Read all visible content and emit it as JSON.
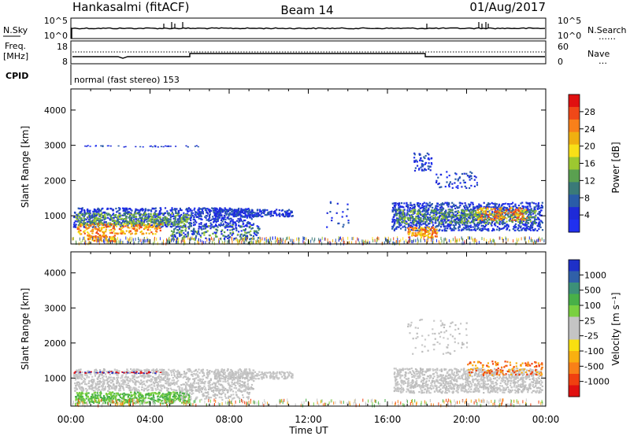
{
  "header": {
    "station": "Hankasalmi (fitACF)",
    "beam": "Beam 14",
    "date": "01/Aug/2017"
  },
  "panels": {
    "nsky": {
      "label": "N.Sky",
      "ticks_left": [
        "10^5",
        "10^0"
      ],
      "ticks_right": [
        "10^5",
        "10^0"
      ],
      "right_label": "N.Search",
      "right_marker": "……"
    },
    "freq": {
      "label_line1": "Freq.",
      "label_line2": "[MHz]",
      "ticks_left": [
        "18",
        "8"
      ],
      "ticks_right": [
        "60",
        "0"
      ],
      "right_label": "Nave",
      "right_marker": "…"
    },
    "cpid": {
      "label": "CPID",
      "mode": "normal (fast stereo) 153"
    }
  },
  "power_colorbar": {
    "label": "Power [dB]",
    "ticks": [
      "28",
      "24",
      "20",
      "16",
      "12",
      "8",
      "4"
    ],
    "colors": [
      "#e01010",
      "#f04818",
      "#f8801a",
      "#f0b010",
      "#f8e018",
      "#9cc830",
      "#5aa050",
      "#3a7a78",
      "#2a5ca8",
      "#1e2ad8",
      "#2030f0"
    ]
  },
  "velocity_colorbar": {
    "label": "Velocity [m s⁻¹]",
    "ticks": [
      "1000",
      "500",
      "100",
      "25",
      "-25",
      "-100",
      "-500",
      "-1000"
    ],
    "colors": [
      "#1e30c8",
      "#3060a8",
      "#3c9078",
      "#48b048",
      "#7ad040",
      "#c4c4c4",
      "#c4c4c4",
      "#f8e010",
      "#f8b010",
      "#f88018",
      "#f04010",
      "#e01010"
    ]
  },
  "chart_data": [
    {
      "type": "heatmap",
      "name": "power",
      "ylabel": "Slant Range [km]",
      "xlabel": "Time UT",
      "xlim_hours": [
        0,
        24
      ],
      "ylim": [
        200,
        4600
      ],
      "x_ticks": [
        "00:00",
        "04:00",
        "08:00",
        "12:00",
        "16:00",
        "20:00",
        "00:00"
      ],
      "y_ticks": [
        1000,
        2000,
        3000,
        4000
      ]
    },
    {
      "type": "heatmap",
      "name": "velocity",
      "ylabel": "Slant Range [km]",
      "xlabel": "Time UT",
      "xlim_hours": [
        0,
        24
      ],
      "ylim": [
        200,
        4600
      ],
      "x_ticks": [
        "00:00",
        "04:00",
        "08:00",
        "12:00",
        "16:00",
        "20:00",
        "00:00"
      ],
      "y_ticks": [
        1000,
        2000,
        3000,
        4000
      ]
    }
  ]
}
